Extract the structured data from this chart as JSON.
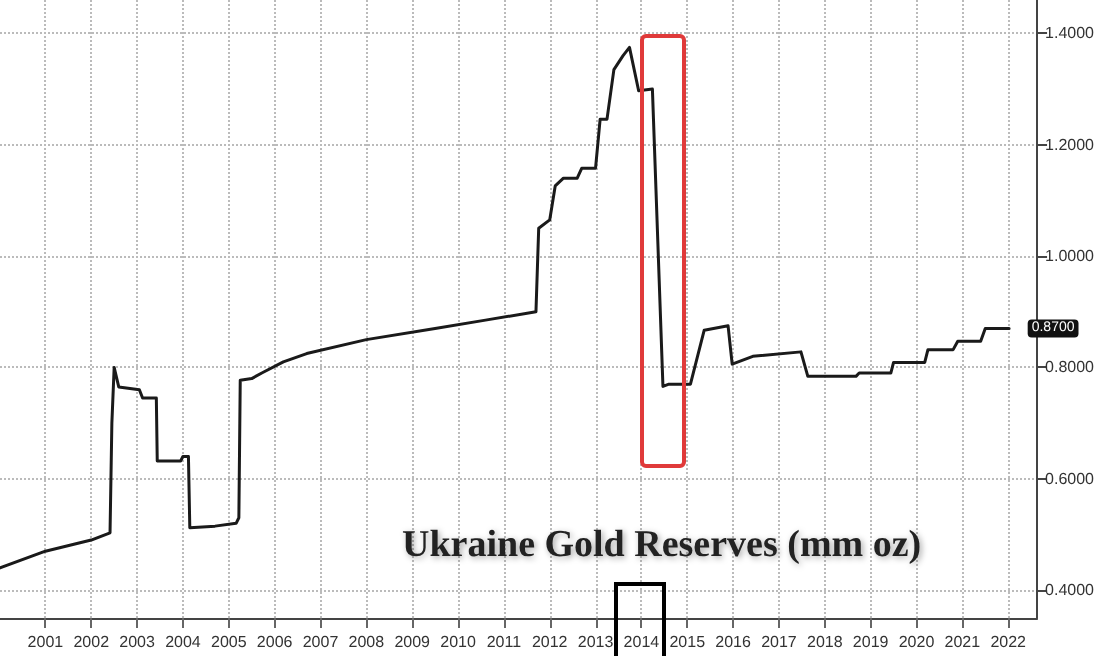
{
  "chart_data": {
    "type": "line",
    "title": "Ukraine Gold Reserves (mm oz)",
    "x": [
      2000.51,
      2001.5,
      2002.5,
      2002.91,
      2002.95,
      2003.0,
      2003.1,
      2003.55,
      2003.62,
      2003.92,
      2003.94,
      2004.45,
      2004.5,
      2004.62,
      2004.65,
      2005.2,
      2005.66,
      2005.72,
      2005.75,
      2006.0,
      2006.22,
      2006.69,
      2007.2,
      2008.5,
      2010.0,
      2011.1,
      2012.2,
      2012.26,
      2012.5,
      2012.62,
      2012.8,
      2013.1,
      2013.2,
      2013.5,
      2013.6,
      2013.75,
      2013.9,
      2014.1,
      2014.24,
      2014.44,
      2014.74,
      2014.97,
      2015.1,
      2015.57,
      2015.87,
      2016.39,
      2016.48,
      2016.93,
      2017.98,
      2018.13,
      2019.18,
      2019.25,
      2019.94,
      2020.0,
      2020.68,
      2020.75,
      2021.3,
      2021.4,
      2021.9,
      2022.0,
      2022.52
    ],
    "series": [
      {
        "color": "#1a1a1a",
        "values": [
          0.44,
          0.47,
          0.49,
          0.503,
          0.7,
          0.8,
          0.765,
          0.76,
          0.745,
          0.745,
          0.632,
          0.632,
          0.64,
          0.64,
          0.512,
          0.515,
          0.52,
          0.53,
          0.777,
          0.78,
          0.79,
          0.81,
          0.825,
          0.85,
          0.87,
          0.885,
          0.9,
          1.05,
          1.065,
          1.126,
          1.14,
          1.14,
          1.158,
          1.158,
          1.246,
          1.246,
          1.335,
          1.36,
          1.375,
          1.297,
          1.3,
          0.766,
          0.77,
          0.77,
          0.867,
          0.875,
          0.806,
          0.82,
          0.828,
          0.784,
          0.784,
          0.79,
          0.79,
          0.809,
          0.809,
          0.832,
          0.832,
          0.847,
          0.847,
          0.87,
          0.87
        ]
      }
    ],
    "xlim": [
      2000.51,
      2023.13
    ],
    "xticks": [
      {
        "value": 2001.5,
        "label": "2001"
      },
      {
        "value": 2002.5,
        "label": "2002"
      },
      {
        "value": 2003.5,
        "label": "2003"
      },
      {
        "value": 2004.5,
        "label": "2004"
      },
      {
        "value": 2005.5,
        "label": "2005"
      },
      {
        "value": 2006.5,
        "label": "2006"
      },
      {
        "value": 2007.5,
        "label": "2007"
      },
      {
        "value": 2008.5,
        "label": "2008"
      },
      {
        "value": 2009.5,
        "label": "2009"
      },
      {
        "value": 2010.5,
        "label": "2010"
      },
      {
        "value": 2011.5,
        "label": "2011"
      },
      {
        "value": 2012.5,
        "label": "2012"
      },
      {
        "value": 2013.5,
        "label": "2013"
      },
      {
        "value": 2014.5,
        "label": "2014"
      },
      {
        "value": 2015.5,
        "label": "2015"
      },
      {
        "value": 2016.5,
        "label": "2016"
      },
      {
        "value": 2017.5,
        "label": "2017"
      },
      {
        "value": 2018.5,
        "label": "2018"
      },
      {
        "value": 2019.5,
        "label": "2019"
      },
      {
        "value": 2020.5,
        "label": "2020"
      },
      {
        "value": 2021.5,
        "label": "2021"
      },
      {
        "value": 2022.5,
        "label": "2022"
      }
    ],
    "ylim": [
      0.35,
      1.46
    ],
    "yticks": [
      {
        "value": 0.4,
        "label": "0.4000"
      },
      {
        "value": 0.6,
        "label": "0.6000"
      },
      {
        "value": 0.8,
        "label": "0.8000"
      },
      {
        "value": 1.0,
        "label": "1.0000"
      },
      {
        "value": 1.2,
        "label": "1.2000"
      },
      {
        "value": 1.4,
        "label": "1.4000"
      }
    ],
    "annotations": [
      {
        "text": "0.8700",
        "x": 2022.52,
        "y": 0.87
      }
    ],
    "grid": true,
    "marker": "none",
    "line_style": "solid"
  }
}
